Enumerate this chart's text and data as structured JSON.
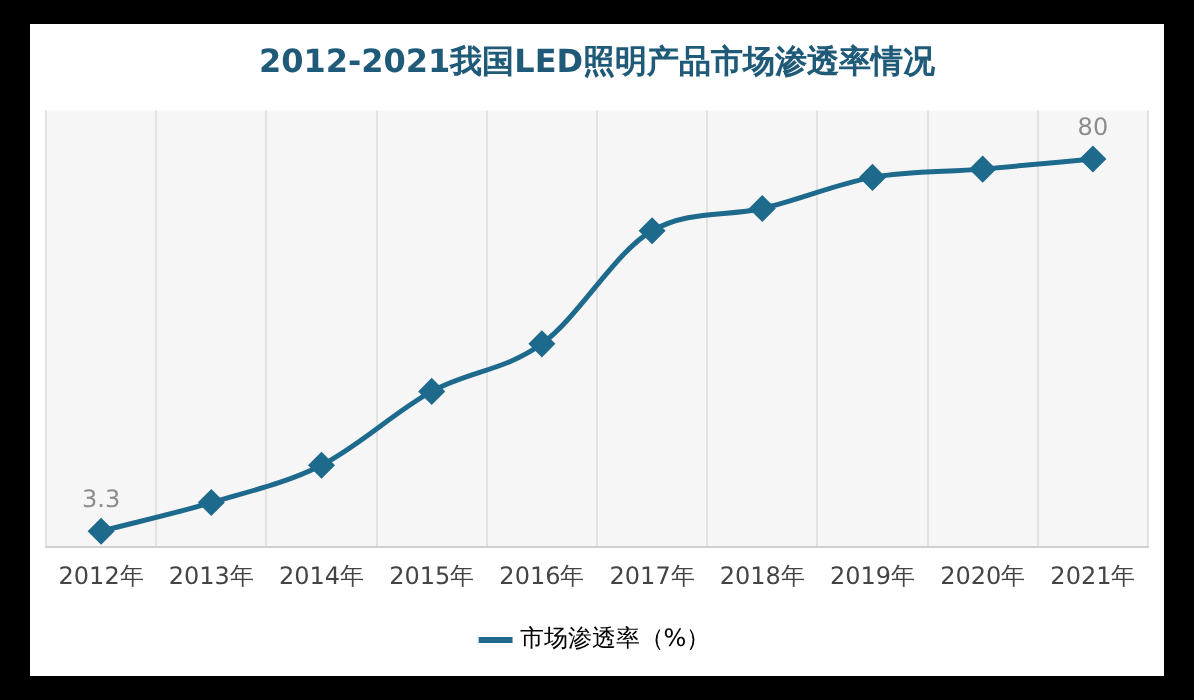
{
  "chart_data": {
    "type": "line",
    "title": "2012-2021我国LED照明产品市场渗透率情况",
    "categories": [
      "2012年",
      "2013年",
      "2014年",
      "2015年",
      "2016年",
      "2017年",
      "2018年",
      "2019年",
      "2020年",
      "2021年"
    ],
    "series": [
      {
        "name": "市场渗透率（%）",
        "color": "#1e6a8d",
        "values": [
          3.3,
          9.2,
          16.9,
          32.1,
          41.9,
          65.2,
          69.8,
          76.2,
          77.9,
          80
        ],
        "value_labels": [
          "3.3",
          null,
          null,
          null,
          null,
          null,
          null,
          null,
          null,
          "80"
        ]
      }
    ],
    "grid": "x",
    "legend": "bottom",
    "marker": "diamond",
    "line_style": "solid"
  }
}
